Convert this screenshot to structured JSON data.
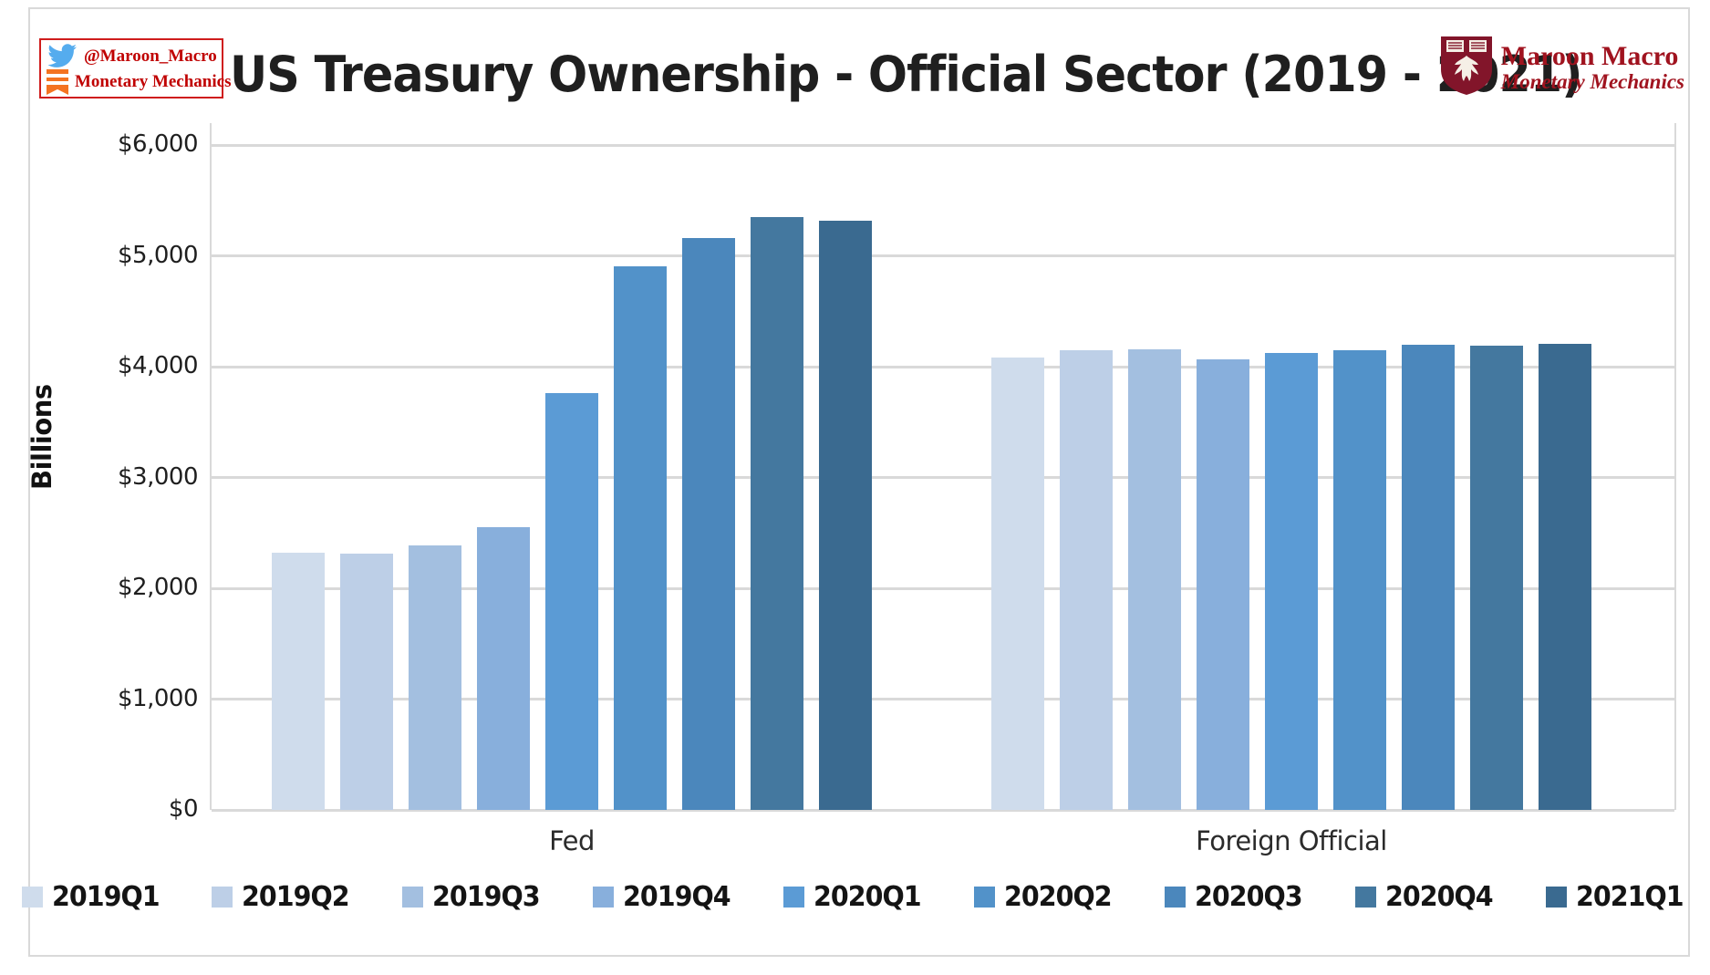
{
  "header": {
    "badge": {
      "twitter_handle": "@Maroon_Macro",
      "newsletter_name": "Monetary Mechanics",
      "accent_color": "#c00000",
      "twitter_blue": "#55acee",
      "bookmark_orange": "#f47321"
    },
    "title": "US Treasury Ownership - Official Sector (2019 - 2021)",
    "logo": {
      "name": "Maroon Macro",
      "subtitle": "Monetary Mechanics",
      "crest_color": "#82152a",
      "text_color": "#a0131f"
    }
  },
  "chart_data": {
    "type": "bar",
    "title": "US Treasury Ownership - Official Sector (2019 - 2021)",
    "ylabel": "Billions",
    "xlabel": "",
    "ylim": [
      0,
      6000
    ],
    "yticks": [
      0,
      1000,
      2000,
      3000,
      4000,
      5000,
      6000
    ],
    "ytick_labels": [
      "$0",
      "$1,000",
      "$2,000",
      "$3,000",
      "$4,000",
      "$5,000",
      "$6,000"
    ],
    "grid": true,
    "gridline_color": "#d9d9d9",
    "legend_position": "bottom",
    "categories": [
      "Fed",
      "Foreign Official"
    ],
    "series": [
      {
        "name": "2019Q1",
        "color": "#cfdcec",
        "values": [
          2325,
          4080
        ]
      },
      {
        "name": "2019Q2",
        "color": "#bdcfe7",
        "values": [
          2310,
          4145
        ]
      },
      {
        "name": "2019Q3",
        "color": "#a3bfe0",
        "values": [
          2385,
          4155
        ]
      },
      {
        "name": "2019Q4",
        "color": "#88afdc",
        "values": [
          2550,
          4070
        ]
      },
      {
        "name": "2020Q1",
        "color": "#5b9bd5",
        "values": [
          3760,
          4125
        ]
      },
      {
        "name": "2020Q2",
        "color": "#5292c9",
        "values": [
          4905,
          4145
        ]
      },
      {
        "name": "2020Q3",
        "color": "#4b87bc",
        "values": [
          5160,
          4200
        ]
      },
      {
        "name": "2020Q4",
        "color": "#44789f",
        "values": [
          5350,
          4190
        ]
      },
      {
        "name": "2021Q1",
        "color": "#3a6a90",
        "values": [
          5315,
          4205
        ]
      }
    ]
  }
}
